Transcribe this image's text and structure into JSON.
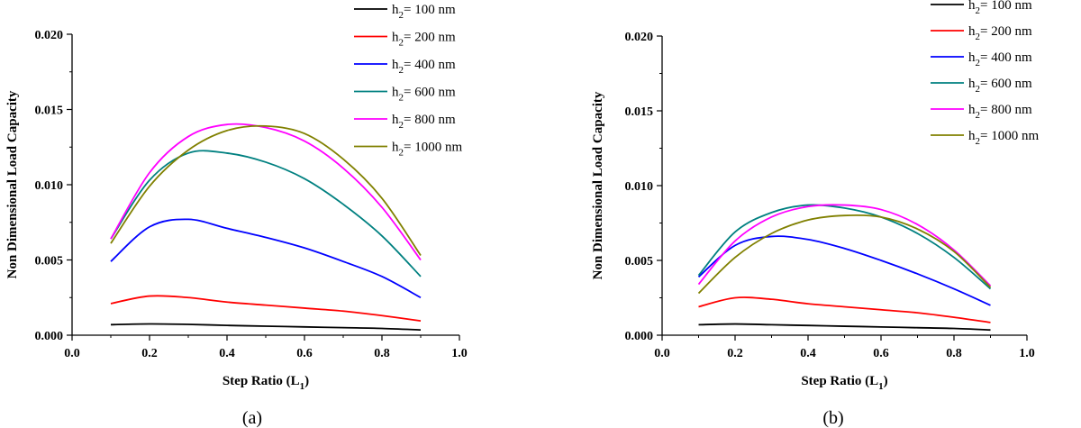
{
  "chart_data": [
    {
      "type": "line",
      "caption": "(a)",
      "xlabel": "Step Ratio (L",
      "xlabel_sub": "1",
      "xlabel_close": ")",
      "ylabel": "Non Dimensional Load Capacity",
      "xlim": [
        0.0,
        1.0
      ],
      "ylim": [
        0.0,
        0.02
      ],
      "xticks": [
        "0.0",
        "0.2",
        "0.4",
        "0.6",
        "0.8",
        "1.0"
      ],
      "yticks": [
        "0.000",
        "0.005",
        "0.010",
        "0.015",
        "0.020"
      ],
      "legend_position": "top-right",
      "x": [
        0.1,
        0.2,
        0.3,
        0.4,
        0.5,
        0.6,
        0.7,
        0.8,
        0.9
      ],
      "series": [
        {
          "prefix": "h",
          "sub": "2",
          "suffix": "= 100 nm",
          "color": "#000000",
          "values": [
            0.0007,
            0.00075,
            0.00072,
            0.00065,
            0.0006,
            0.00055,
            0.0005,
            0.00045,
            0.00035
          ]
        },
        {
          "prefix": "h",
          "sub": "2",
          "suffix": "= 200 nm",
          "color": "#ff0000",
          "values": [
            0.0021,
            0.0026,
            0.0025,
            0.0022,
            0.002,
            0.0018,
            0.0016,
            0.0013,
            0.00095
          ]
        },
        {
          "prefix": "h",
          "sub": "2",
          "suffix": "= 400 nm",
          "color": "#0000ff",
          "values": [
            0.0049,
            0.0072,
            0.0077,
            0.0071,
            0.0065,
            0.0058,
            0.0049,
            0.0039,
            0.0025
          ]
        },
        {
          "prefix": "h",
          "sub": "2",
          "suffix": "= 600 nm",
          "color": "#008080",
          "values": [
            0.0064,
            0.0103,
            0.0121,
            0.0121,
            0.0115,
            0.0104,
            0.0087,
            0.0066,
            0.0039
          ]
        },
        {
          "prefix": "h",
          "sub": "2",
          "suffix": "= 800 nm",
          "color": "#ff00ff",
          "values": [
            0.0064,
            0.0108,
            0.0132,
            0.014,
            0.0138,
            0.0129,
            0.0111,
            0.0085,
            0.005
          ]
        },
        {
          "prefix": "h",
          "sub": "2",
          "suffix": "= 1000 nm",
          "color": "#808000",
          "values": [
            0.0061,
            0.0099,
            0.0123,
            0.0136,
            0.0139,
            0.0134,
            0.0117,
            0.0091,
            0.0053
          ]
        }
      ]
    },
    {
      "type": "line",
      "caption": "(b)",
      "xlabel": "Step Ratio (L",
      "xlabel_sub": "1",
      "xlabel_close": ")",
      "ylabel": "Non Dimensional Load Capacity",
      "xlim": [
        0.0,
        1.0
      ],
      "ylim": [
        0.0,
        0.02
      ],
      "xticks": [
        "0.0",
        "0.2",
        "0.4",
        "0.6",
        "0.8",
        "1.0"
      ],
      "yticks": [
        "0.000",
        "0.005",
        "0.010",
        "0.015",
        "0.020"
      ],
      "legend_position": "top-right",
      "x": [
        0.1,
        0.2,
        0.3,
        0.4,
        0.5,
        0.6,
        0.7,
        0.8,
        0.9
      ],
      "series": [
        {
          "prefix": "h",
          "sub": "2",
          "suffix": "= 100 nm",
          "color": "#000000",
          "values": [
            0.0007,
            0.00075,
            0.0007,
            0.00065,
            0.0006,
            0.00055,
            0.0005,
            0.00045,
            0.00035
          ]
        },
        {
          "prefix": "h",
          "sub": "2",
          "suffix": "= 200 nm",
          "color": "#ff0000",
          "values": [
            0.0019,
            0.0025,
            0.0024,
            0.0021,
            0.0019,
            0.0017,
            0.0015,
            0.0012,
            0.00085
          ]
        },
        {
          "prefix": "h",
          "sub": "2",
          "suffix": "= 400 nm",
          "color": "#0000ff",
          "values": [
            0.0039,
            0.006,
            0.0066,
            0.0064,
            0.0058,
            0.005,
            0.0041,
            0.0031,
            0.002
          ]
        },
        {
          "prefix": "h",
          "sub": "2",
          "suffix": "= 600 nm",
          "color": "#008080",
          "values": [
            0.004,
            0.0069,
            0.0082,
            0.0087,
            0.0085,
            0.0079,
            0.0068,
            0.0052,
            0.0031
          ]
        },
        {
          "prefix": "h",
          "sub": "2",
          "suffix": "= 800 nm",
          "color": "#ff00ff",
          "values": [
            0.0034,
            0.0063,
            0.0079,
            0.0086,
            0.0087,
            0.0084,
            0.0074,
            0.0057,
            0.0033
          ]
        },
        {
          "prefix": "h",
          "sub": "2",
          "suffix": "= 1000 nm",
          "color": "#808000",
          "values": [
            0.0028,
            0.0052,
            0.0068,
            0.0077,
            0.008,
            0.0079,
            0.0071,
            0.0056,
            0.0032
          ]
        }
      ]
    }
  ]
}
